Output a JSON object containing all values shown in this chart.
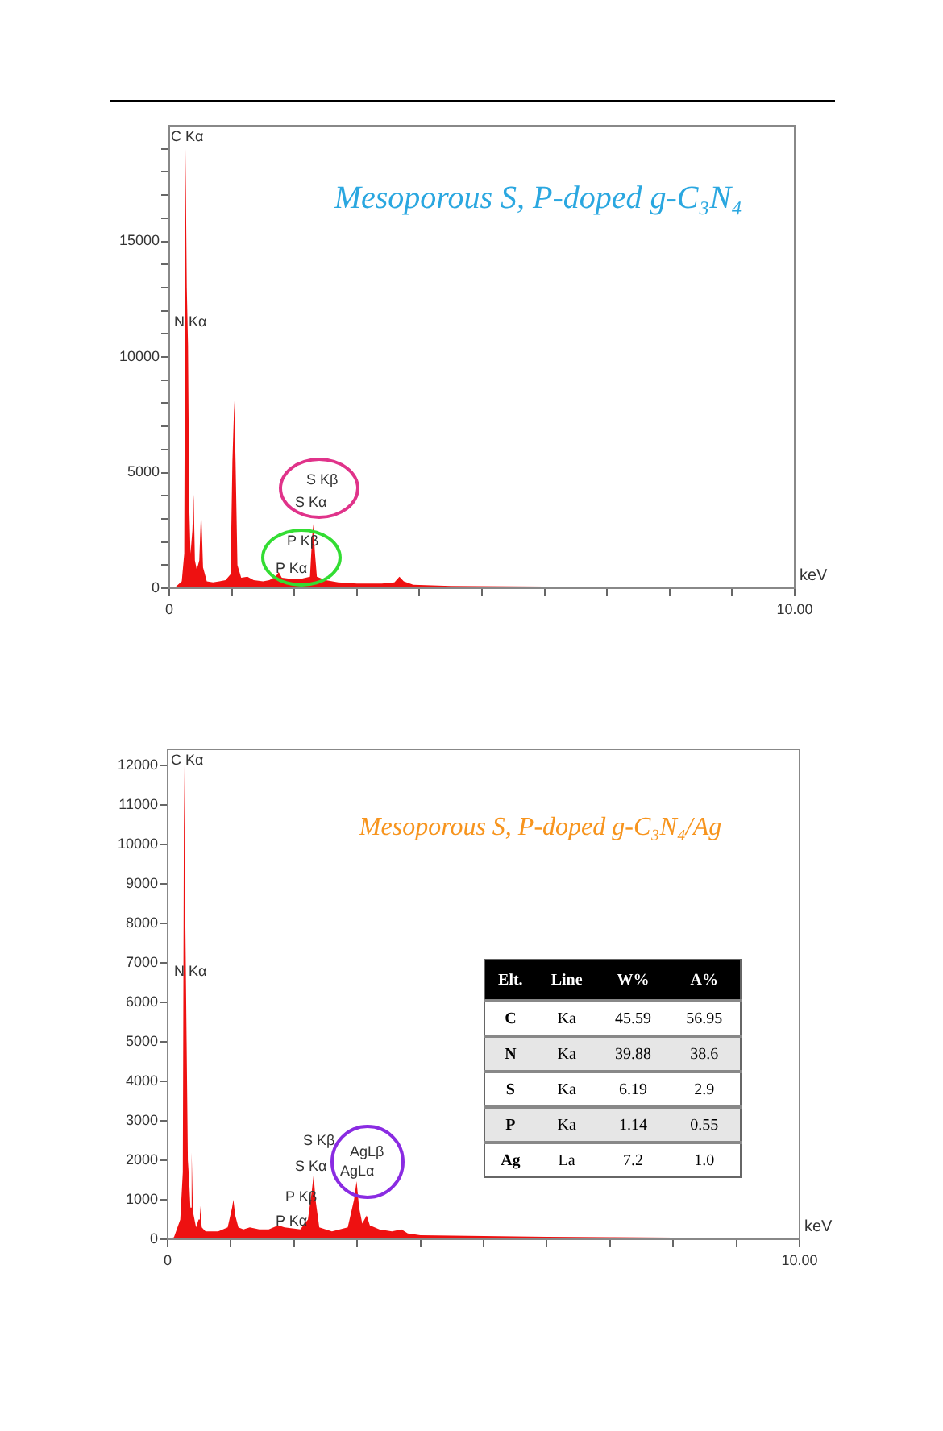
{
  "chart_data": [
    {
      "type": "area",
      "title": "Mesoporous S, P-doped g-C₃N₄",
      "xlabel": "keV",
      "xlim": [
        0,
        10
      ],
      "ylim": [
        0,
        20000
      ],
      "xticks": [
        0,
        {
          "value": 1,
          "label": null
        },
        {
          "value": 2,
          "label": null
        },
        {
          "value": 3,
          "label": null
        },
        {
          "value": 4,
          "label": null
        },
        {
          "value": 5,
          "label": null
        },
        {
          "value": 6,
          "label": null
        },
        {
          "value": 7,
          "label": null
        },
        {
          "value": 8,
          "label": null
        },
        {
          "value": 9,
          "label": null
        },
        {
          "value": 10,
          "label": "10.00"
        }
      ],
      "yticks": [
        0,
        {
          "value": 1000,
          "label": null
        },
        {
          "value": 2000,
          "label": null
        },
        {
          "value": 3000,
          "label": null
        },
        {
          "value": 4000,
          "label": null
        },
        5000,
        {
          "value": 6000,
          "label": null
        },
        {
          "value": 7000,
          "label": null
        },
        {
          "value": 8000,
          "label": null
        },
        {
          "value": 9000,
          "label": null
        },
        10000,
        {
          "value": 11000,
          "label": null
        },
        {
          "value": 12000,
          "label": null
        },
        {
          "value": 13000,
          "label": null
        },
        {
          "value": 14000,
          "label": null
        },
        15000,
        {
          "value": 16000,
          "label": null
        },
        {
          "value": 17000,
          "label": null
        },
        {
          "value": 18000,
          "label": null
        },
        {
          "value": 19000,
          "label": null
        }
      ],
      "grid": false,
      "legend": false,
      "series": [
        {
          "color": "#ee1111",
          "x": [
            0,
            0.1,
            0.2,
            0.24,
            0.26,
            0.28,
            0.3,
            0.32,
            0.34,
            0.37,
            0.39,
            0.41,
            0.44,
            0.48,
            0.51,
            0.54,
            0.6,
            0.7,
            0.8,
            0.9,
            0.98,
            1.01,
            1.04,
            1.06,
            1.09,
            1.15,
            1.25,
            1.35,
            1.5,
            1.6,
            1.7,
            1.75,
            1.8,
            1.95,
            2.1,
            2.25,
            2.28,
            2.3,
            2.33,
            2.36,
            2.5,
            2.7,
            3.0,
            3.4,
            3.6,
            3.68,
            3.75,
            3.9,
            4.5,
            5.5,
            6.5,
            7.5,
            8.5,
            9.5,
            10
          ],
          "values": [
            0,
            50,
            300,
            1500,
            19000,
            13000,
            10500,
            3500,
            1500,
            2500,
            4050,
            1200,
            800,
            1200,
            3450,
            900,
            300,
            250,
            300,
            350,
            600,
            5500,
            8100,
            5500,
            1000,
            450,
            500,
            350,
            300,
            350,
            500,
            700,
            450,
            400,
            400,
            500,
            2000,
            2780,
            1500,
            500,
            350,
            250,
            200,
            200,
            250,
            500,
            300,
            150,
            100,
            80,
            60,
            50,
            40,
            30,
            30
          ]
        }
      ],
      "annotations": [
        "C Kα",
        "N Kα",
        "S Kβ",
        "S Kα",
        "P Kβ",
        "P Kα"
      ]
    },
    {
      "type": "area",
      "title": "Mesoporous S, P-doped g-C₃N₄/Ag",
      "xlabel": "keV",
      "xlim": [
        0,
        10
      ],
      "ylim": [
        0,
        12400
      ],
      "xticks": [
        0,
        {
          "value": 1,
          "label": null
        },
        {
          "value": 2,
          "label": null
        },
        {
          "value": 3,
          "label": null
        },
        {
          "value": 4,
          "label": null
        },
        {
          "value": 5,
          "label": null
        },
        {
          "value": 6,
          "label": null
        },
        {
          "value": 7,
          "label": null
        },
        {
          "value": 8,
          "label": null
        },
        {
          "value": 9,
          "label": null
        },
        {
          "value": 10,
          "label": "10.00"
        }
      ],
      "yticks": [
        0,
        1000,
        2000,
        3000,
        4000,
        5000,
        6000,
        7000,
        8000,
        9000,
        10000,
        11000,
        12000
      ],
      "grid": false,
      "legend": false,
      "series": [
        {
          "color": "#ee1111",
          "x": [
            0,
            0.1,
            0.2,
            0.24,
            0.26,
            0.28,
            0.3,
            0.32,
            0.34,
            0.36,
            0.38,
            0.4,
            0.45,
            0.49,
            0.51,
            0.54,
            0.6,
            0.8,
            0.95,
            1.02,
            1.04,
            1.07,
            1.12,
            1.2,
            1.3,
            1.45,
            1.6,
            1.75,
            1.85,
            2.1,
            2.22,
            2.28,
            2.31,
            2.34,
            2.4,
            2.6,
            2.85,
            2.95,
            2.99,
            3.03,
            3.08,
            3.15,
            3.2,
            3.35,
            3.55,
            3.7,
            3.8,
            4.0,
            5,
            6,
            7,
            8,
            9,
            10
          ],
          "values": [
            0,
            50,
            500,
            1700,
            12000,
            8000,
            5000,
            2000,
            1500,
            800,
            2200,
            700,
            300,
            500,
            850,
            300,
            200,
            200,
            300,
            800,
            1000,
            600,
            300,
            250,
            300,
            250,
            250,
            350,
            300,
            250,
            500,
            1200,
            1630,
            1000,
            300,
            200,
            300,
            1000,
            1470,
            800,
            400,
            600,
            350,
            250,
            200,
            250,
            150,
            100,
            80,
            60,
            50,
            40,
            30,
            30
          ]
        }
      ],
      "annotations": [
        "C Kα",
        "N Kα",
        "S Kβ",
        "S Kα",
        "AgLβ",
        "AgLα",
        "P Kβ",
        "P Kα"
      ]
    },
    {
      "type": "other",
      "ylabel": "Elt.",
      "categories": [
        "Line",
        "W%",
        "A%"
      ],
      "y_categories": [
        "C",
        "N",
        "S",
        "P",
        "Ag"
      ],
      "cell_labels": [
        [
          "Ka",
          "45.59",
          "56.95"
        ],
        [
          "Ka",
          "39.88",
          "38.6"
        ],
        [
          "Ka",
          "6.19",
          "2.9"
        ],
        [
          "Ka",
          "1.14",
          "0.55"
        ],
        [
          "La",
          "7.2",
          "1.0"
        ]
      ]
    }
  ]
}
